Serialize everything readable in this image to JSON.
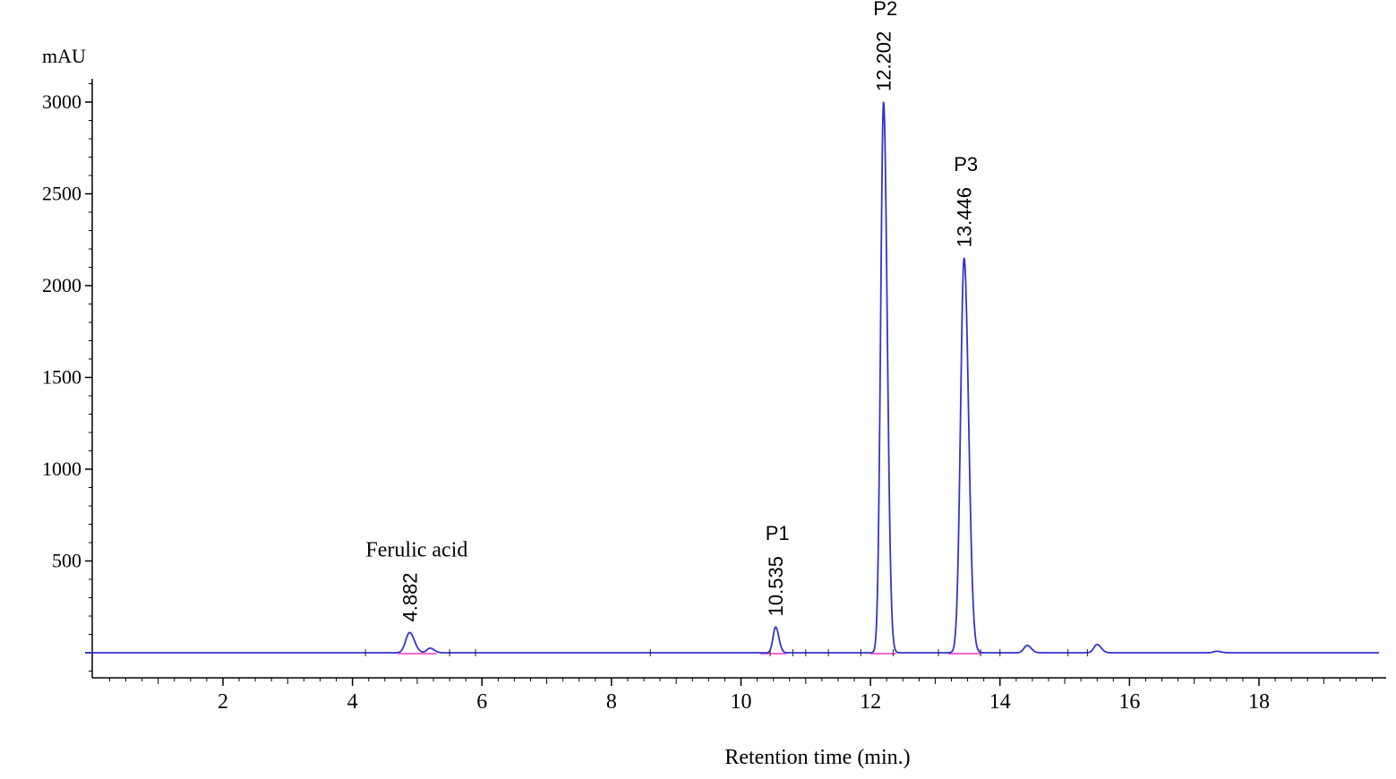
{
  "chart_data": {
    "type": "line",
    "title": "",
    "xlabel": "Retention time (min.)",
    "ylabel": "mAU",
    "xlim": [
      0,
      19.9
    ],
    "ylim": [
      -150,
      3130
    ],
    "x_ticks": [
      "2",
      "4",
      "6",
      "8",
      "10",
      "12",
      "14",
      "16",
      "18"
    ],
    "y_ticks": [
      "500",
      "1000",
      "1500",
      "2000",
      "2500",
      "3000"
    ],
    "grid": false,
    "legend": "none",
    "colors": {
      "trace": "#3333cc",
      "baseline": "#ff33cc",
      "axis": "#000000"
    },
    "baseline_segments": [
      [
        4.7,
        5.3
      ],
      [
        10.3,
        10.7
      ],
      [
        12.0,
        12.4
      ],
      [
        13.2,
        13.7
      ]
    ],
    "peaks": [
      {
        "rt": 4.882,
        "height": 110,
        "width": 0.06
      },
      {
        "rt": 5.2,
        "height": 25,
        "width": 0.05
      },
      {
        "rt": 10.535,
        "height": 140,
        "width": 0.04
      },
      {
        "rt": 12.202,
        "height": 3000,
        "width": 0.045
      },
      {
        "rt": 13.446,
        "height": 2150,
        "width": 0.055
      },
      {
        "rt": 14.42,
        "height": 40,
        "width": 0.05
      },
      {
        "rt": 15.5,
        "height": 45,
        "width": 0.05
      },
      {
        "rt": 17.35,
        "height": 8,
        "width": 0.05
      }
    ],
    "annotations": [
      {
        "name": "Ferulic acid",
        "rt_label": "4.882",
        "rt": 4.882
      },
      {
        "name": "P1",
        "rt_label": "10.535",
        "rt": 10.535
      },
      {
        "name": "P2",
        "rt_label": "12.202",
        "rt": 12.202
      },
      {
        "name": "P3",
        "rt_label": "13.446",
        "rt": 13.446
      }
    ]
  }
}
